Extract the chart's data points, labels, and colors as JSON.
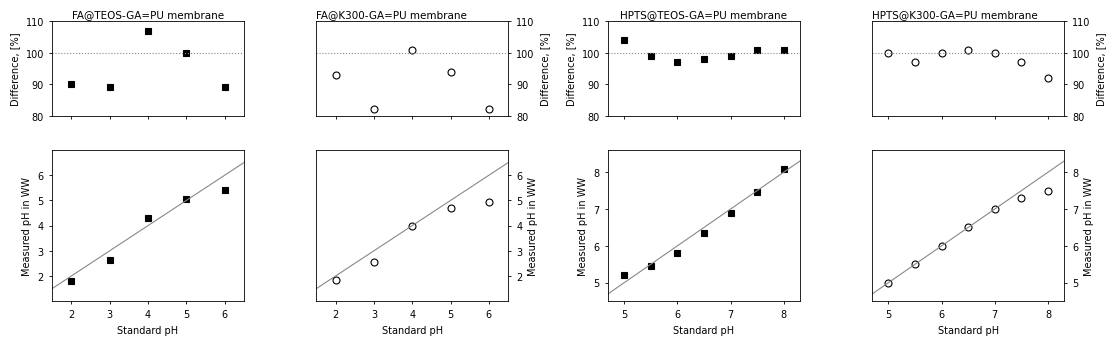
{
  "panels": [
    {
      "title": "FA@TEOS-GA=PU membrane",
      "std_ph": [
        2,
        3,
        4,
        5,
        6
      ],
      "measured_ph": [
        1.8,
        2.65,
        4.3,
        5.05,
        5.4
      ],
      "difference": [
        90,
        89,
        107,
        100,
        89
      ],
      "marker": "s",
      "marker_fill": "black",
      "ylabel_left": true,
      "xlim": [
        1.5,
        6.5
      ],
      "ylim_diff": [
        80,
        110
      ],
      "ylim_meas": [
        1.0,
        7.0
      ],
      "yticks_diff": [
        80,
        90,
        100,
        110
      ],
      "yticks_meas": [
        2,
        3,
        4,
        5,
        6
      ],
      "xticks_meas": [
        2,
        3,
        4,
        5,
        6
      ]
    },
    {
      "title": "FA@K300-GA=PU membrane",
      "std_ph": [
        2,
        3,
        4,
        5,
        6
      ],
      "measured_ph": [
        1.85,
        2.55,
        4.0,
        4.7,
        4.95
      ],
      "difference": [
        93,
        82,
        101,
        94,
        82
      ],
      "marker": "o",
      "marker_fill": "none",
      "ylabel_left": false,
      "xlim": [
        1.5,
        6.5
      ],
      "ylim_diff": [
        80,
        110
      ],
      "ylim_meas": [
        1.0,
        7.0
      ],
      "yticks_diff": [
        80,
        90,
        100,
        110
      ],
      "yticks_meas": [
        2,
        3,
        4,
        5,
        6
      ],
      "xticks_meas": [
        2,
        3,
        4,
        5,
        6
      ]
    },
    {
      "title": "HPTS@TEOS-GA=PU membrane",
      "std_ph": [
        5,
        5.5,
        6,
        6.5,
        7,
        7.5,
        8
      ],
      "measured_ph": [
        5.2,
        5.45,
        5.8,
        6.35,
        6.9,
        7.45,
        8.1
      ],
      "difference": [
        104,
        99,
        97,
        98,
        99,
        101,
        101
      ],
      "marker": "s",
      "marker_fill": "black",
      "ylabel_left": true,
      "xlim": [
        4.7,
        8.3
      ],
      "ylim_diff": [
        80,
        110
      ],
      "ylim_meas": [
        4.5,
        8.6
      ],
      "yticks_diff": [
        80,
        90,
        100,
        110
      ],
      "yticks_meas": [
        5,
        6,
        7,
        8
      ],
      "xticks_meas": [
        5,
        6,
        7,
        8
      ]
    },
    {
      "title": "HPTS@K300-GA=PU membrane",
      "std_ph": [
        5,
        5.5,
        6,
        6.5,
        7,
        7.5,
        8
      ],
      "measured_ph": [
        5.0,
        5.5,
        6.0,
        6.5,
        7.0,
        7.3,
        7.5
      ],
      "difference": [
        100,
        97,
        100,
        101,
        100,
        97,
        92
      ],
      "marker": "o",
      "marker_fill": "none",
      "ylabel_left": false,
      "xlim": [
        4.7,
        8.3
      ],
      "ylim_diff": [
        80,
        110
      ],
      "ylim_meas": [
        4.5,
        8.6
      ],
      "yticks_diff": [
        80,
        90,
        100,
        110
      ],
      "yticks_meas": [
        5,
        6,
        7,
        8
      ],
      "xticks_meas": [
        5,
        6,
        7,
        8
      ]
    }
  ],
  "dotted_line_y": 100,
  "background_color": "#ffffff",
  "marker_size": 5,
  "linewidth_ref": 0.8,
  "fontsize_title": 7.5,
  "fontsize_label": 7,
  "fontsize_tick": 7,
  "ref_line_color": "#888888",
  "dotted_color": "#888888"
}
